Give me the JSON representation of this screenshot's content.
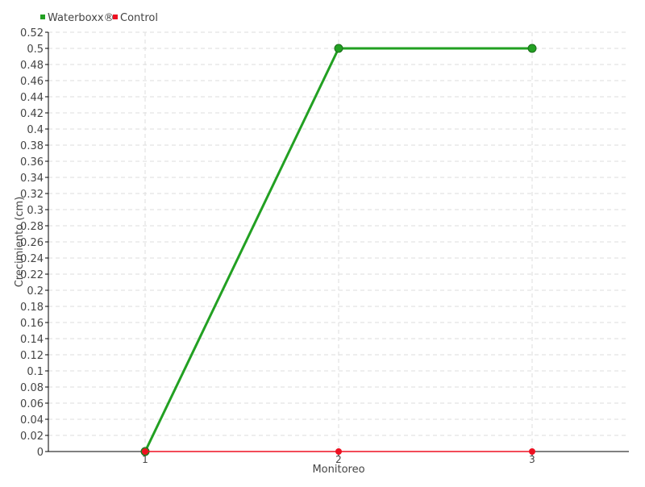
{
  "chart_data": {
    "type": "line",
    "title": "",
    "xlabel": "Monitoreo",
    "ylabel": "Crecimiento (cm)",
    "x": [
      1,
      2,
      3
    ],
    "x_tick_labels": [
      "1",
      "2",
      "3"
    ],
    "xlim": [
      0.5,
      3.5
    ],
    "ylim": [
      0,
      0.52
    ],
    "y_ticks": [
      0,
      0.02,
      0.04,
      0.06,
      0.08,
      0.1,
      0.12,
      0.14,
      0.16,
      0.18,
      0.2,
      0.22,
      0.24,
      0.26,
      0.28,
      0.3,
      0.32,
      0.34,
      0.36,
      0.38,
      0.4,
      0.42,
      0.44,
      0.46,
      0.48,
      0.5,
      0.52
    ],
    "grid": true,
    "legend_position": "top-left",
    "series": [
      {
        "name": "Waterboxx®",
        "values": [
          0,
          0.5,
          0.5
        ],
        "color": "#22a022"
      },
      {
        "name": "Control",
        "values": [
          0,
          0,
          0
        ],
        "color": "#ee1122"
      }
    ]
  }
}
